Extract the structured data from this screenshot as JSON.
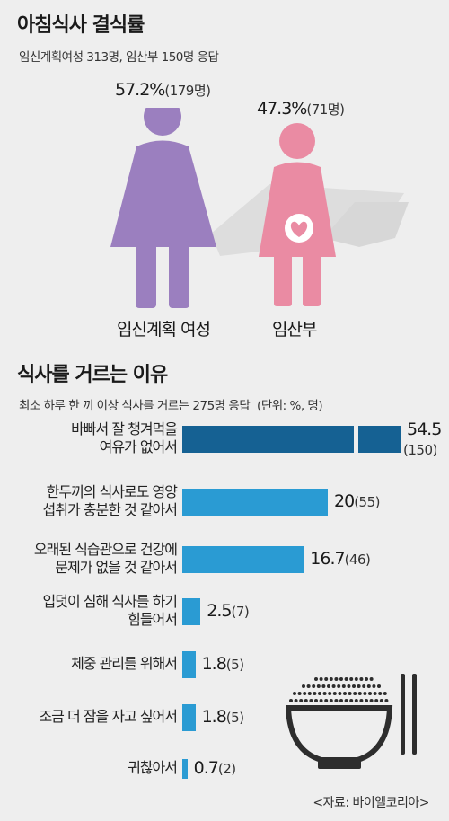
{
  "section1": {
    "title": "아침식사 결식률",
    "subtitle": "임신계획여성 313명, 임산부 150명 응답",
    "groups": [
      {
        "label": "임신계획 여성",
        "pct": "57.2%",
        "count": "(179명)",
        "color": "#9b7fbf",
        "value": 57.2
      },
      {
        "label": "임산부",
        "pct": "47.3%",
        "count": "(71명)",
        "color": "#ea8ba3",
        "value": 47.3
      }
    ]
  },
  "section2": {
    "title": "식사를 거르는 이유",
    "subtitle": "최소 하루 한 끼 이상 식사를 거르는 275명 응답",
    "unit": "(단위: %, 명)"
  },
  "chart_data": {
    "type": "bar",
    "orientation": "horizontal",
    "categories": [
      "바빠서 잘 챙겨먹을 여유가 없어서",
      "한두끼의 식사로도 영양 섭취가 충분한 것 같아서",
      "오래된 식습관으로 건강에 문제가 없을 것 같아서",
      "입덧이 심해 식사를 하기 힘들어서",
      "체중 관리를 위해서",
      "조금 더 잠을 자고 싶어서",
      "귀찮아서"
    ],
    "label_lines": [
      [
        "바빠서 잘 챙겨먹을",
        "여유가 없어서"
      ],
      [
        "한두끼의 식사로도 영양",
        "섭취가 충분한 것 같아서"
      ],
      [
        "오래된 식습관으로 건강에",
        "문제가 없을 것 같아서"
      ],
      [
        "입덧이 심해 식사를 하기",
        "힘들어서"
      ],
      [
        "체중 관리를 위해서"
      ],
      [
        "조금 더 잠을 자고 싶어서"
      ],
      [
        "귀찮아서"
      ]
    ],
    "values": [
      54.5,
      20,
      16.7,
      2.5,
      1.8,
      1.8,
      0.7
    ],
    "value_labels": [
      "54.5",
      "20",
      "16.7",
      "2.5",
      "1.8",
      "1.8",
      "0.7"
    ],
    "counts": [
      "(150)",
      "(55)",
      "(46)",
      "(7)",
      "(5)",
      "(5)",
      "(2)"
    ],
    "axis_break_on_first": true,
    "colors": {
      "first": "#156193",
      "rest": "#2a9bd3"
    }
  },
  "source": "<자료: 바이엘코리아>"
}
